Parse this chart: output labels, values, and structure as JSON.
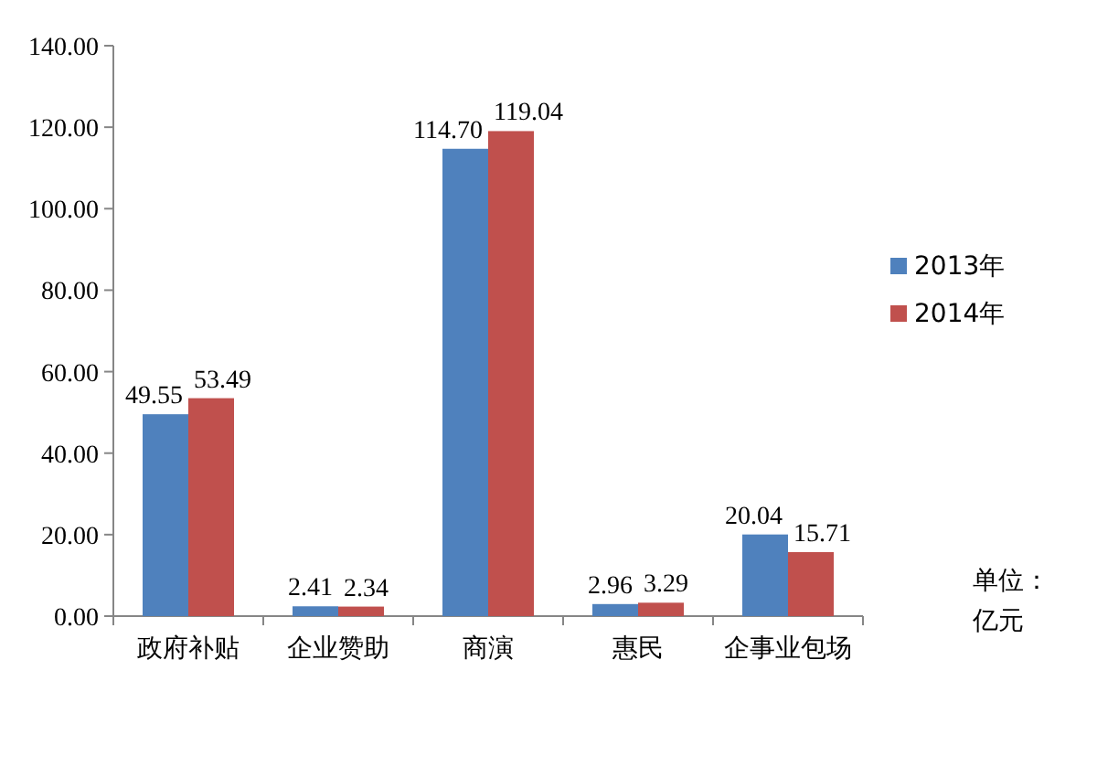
{
  "chart_data": {
    "type": "bar",
    "categories": [
      "政府补贴",
      "企业赞助",
      "商演",
      "惠民",
      "企事业包场"
    ],
    "series": [
      {
        "name": "2013年",
        "color": "#4f81bd",
        "values": [
          49.55,
          2.41,
          114.7,
          2.96,
          20.04
        ],
        "value_labels": [
          "49.55",
          "2.41",
          "114.70",
          "2.96",
          "20.04"
        ]
      },
      {
        "name": "2014年",
        "color": "#c0504d",
        "values": [
          53.49,
          2.34,
          119.04,
          3.29,
          15.71
        ],
        "value_labels": [
          "53.49",
          "2.34",
          "119.04",
          "3.29",
          "15.71"
        ]
      }
    ],
    "ylim": [
      0,
      140
    ],
    "yticks": [
      {
        "value": 0,
        "label": "0.00"
      },
      {
        "value": 20,
        "label": "20.00"
      },
      {
        "value": 40,
        "label": "40.00"
      },
      {
        "value": 60,
        "label": "60.00"
      },
      {
        "value": 80,
        "label": "80.00"
      },
      {
        "value": 100,
        "label": "100.00"
      },
      {
        "value": 120,
        "label": "120.00"
      },
      {
        "value": 140,
        "label": "140.00"
      }
    ],
    "grid": false,
    "legend": "right",
    "annotations": [
      "单位：",
      "亿元"
    ]
  }
}
